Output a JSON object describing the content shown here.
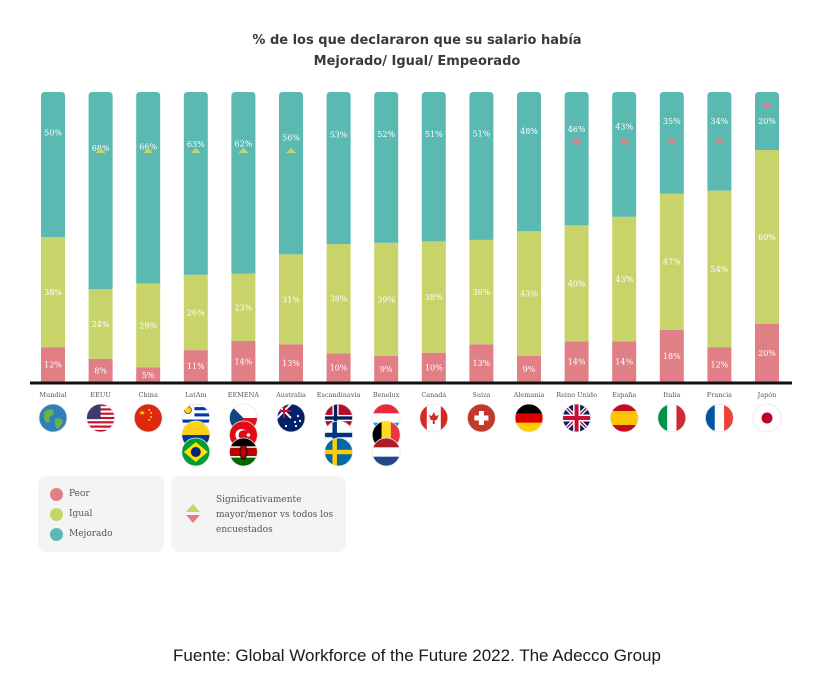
{
  "title_line1": "% de los que declararon que su salario había",
  "title_line2": "Mejorado/ Igual/ Empeorado",
  "colors": {
    "peor": "#e07f86",
    "igual": "#c8d46a",
    "mejorado": "#5ab9b1",
    "up_marker": "#c8d46a",
    "down_marker": "#e07f86",
    "axis": "#111111",
    "label_text": "#ffffff"
  },
  "legend": {
    "items": [
      {
        "label": "Peor",
        "key": "peor"
      },
      {
        "label": "Igual",
        "key": "igual"
      },
      {
        "label": "Mejorado",
        "key": "mejorado"
      }
    ],
    "significance_text": "Significativamente mayor/menor vs todos los encuestados"
  },
  "source": "Fuente: Global Workforce of the Future 2022. The Adecco Group",
  "chart_data": {
    "type": "bar",
    "stacked": true,
    "title": "% de los que declararon que su salario había Mejorado/ Igual/ Empeorado",
    "xlabel": "",
    "ylabel": "",
    "ylim": [
      0,
      100
    ],
    "grid": false,
    "legend_position": "bottom-left",
    "categories": [
      "Mundial",
      "EEUU",
      "China",
      "LatAm",
      "EEMENA",
      "Australia",
      "Escandinavia",
      "Benelux",
      "Canadá",
      "Suiza",
      "Alemania",
      "Reino Unido",
      "España",
      "Italia",
      "Francia",
      "Japón"
    ],
    "flags": [
      [
        "globe"
      ],
      [
        "usa"
      ],
      [
        "china"
      ],
      [
        "uruguay",
        "colombia",
        "brazil"
      ],
      [
        "czech",
        "turkey",
        "kenya"
      ],
      [
        "australia"
      ],
      [
        "norway",
        "finland",
        "sweden"
      ],
      [
        "luxembourg",
        "belgium",
        "netherlands"
      ],
      [
        "canada"
      ],
      [
        "switzerland"
      ],
      [
        "germany"
      ],
      [
        "uk"
      ],
      [
        "spain"
      ],
      [
        "italy"
      ],
      [
        "france"
      ],
      [
        "japan"
      ]
    ],
    "series": [
      {
        "name": "Peor",
        "key": "peor",
        "values": [
          12,
          8,
          5,
          11,
          14,
          13,
          10,
          9,
          10,
          13,
          9,
          14,
          14,
          18,
          12,
          20
        ]
      },
      {
        "name": "Igual",
        "key": "igual",
        "values": [
          38,
          24,
          29,
          26,
          23,
          31,
          38,
          39,
          38,
          36,
          43,
          40,
          43,
          47,
          54,
          60
        ]
      },
      {
        "name": "Mejorado",
        "key": "mejorado",
        "values": [
          50,
          68,
          66,
          63,
          62,
          56,
          53,
          52,
          51,
          51,
          48,
          46,
          43,
          35,
          34,
          20
        ]
      }
    ],
    "significance_markers": [
      "none",
      "up",
      "up",
      "up",
      "up",
      "up",
      "none",
      "none",
      "none",
      "none",
      "none",
      "down",
      "down",
      "down",
      "down",
      "down"
    ]
  }
}
